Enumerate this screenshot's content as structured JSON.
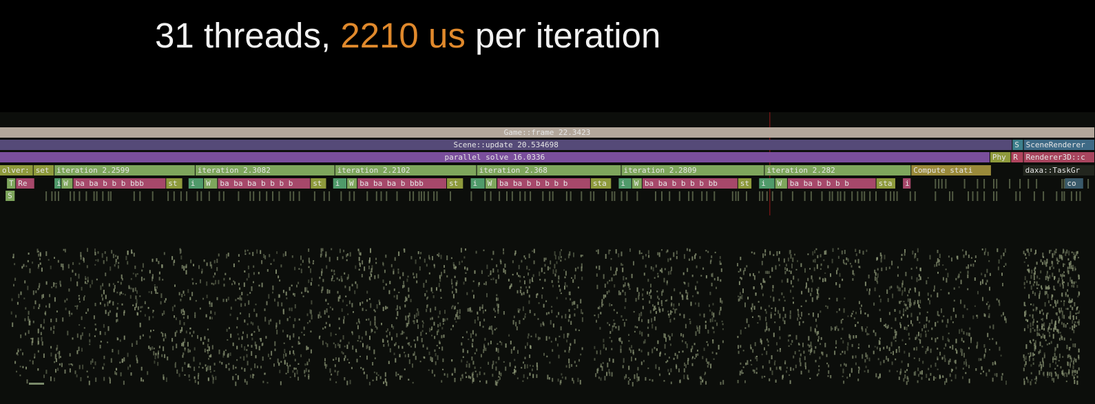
{
  "title": {
    "prefix": "31 threads, ",
    "highlight": "2210 us",
    "suffix": " per iteration"
  },
  "rows": [
    [
      {
        "label": "Game::frame 22.3423"
      }
    ],
    [
      {
        "label": "Scene::update 20.534698"
      },
      {
        "label": "S"
      },
      {
        "label": "SceneRenderer"
      }
    ],
    [
      {
        "label": "parallel solve 16.0336"
      },
      {
        "label": "Phy"
      },
      {
        "label": "R"
      },
      {
        "label": "Renderer3D::c"
      }
    ],
    [
      {
        "label": "olver:"
      },
      {
        "label": "set"
      },
      {
        "label": "iteration 2.2599"
      },
      {
        "label": "iteration 2.3082"
      },
      {
        "label": "iteration 2.2102"
      },
      {
        "label": "iteration 2.368"
      },
      {
        "label": "iteration 2.2809"
      },
      {
        "label": "iteration 2.282"
      },
      {
        "label": "Compute stati"
      },
      {
        "label": "daxa::TaskGr"
      }
    ],
    [
      {
        "label": "T"
      },
      {
        "label": "Re"
      },
      {
        "label": "i"
      },
      {
        "label": "W"
      },
      {
        "label": "ba ba b b b bbb"
      },
      {
        "label": "st"
      },
      {
        "label": "i"
      },
      {
        "label": "W"
      },
      {
        "label": "ba ba ba b b b b"
      },
      {
        "label": "st"
      },
      {
        "label": "i"
      },
      {
        "label": "W"
      },
      {
        "label": "ba ba ba b bbb"
      },
      {
        "label": "st"
      },
      {
        "label": "i"
      },
      {
        "label": "W"
      },
      {
        "label": "ba ba b b b b b"
      },
      {
        "label": "sta"
      },
      {
        "label": "i"
      },
      {
        "label": "W"
      },
      {
        "label": "ba ba b b b b bb"
      },
      {
        "label": "st"
      },
      {
        "label": "i"
      },
      {
        "label": "W"
      },
      {
        "label": "ba ba b b b b"
      },
      {
        "label": "sta"
      },
      {
        "label": "i"
      },
      {
        "label": "co"
      }
    ],
    [
      {
        "label": "S"
      }
    ]
  ]
}
